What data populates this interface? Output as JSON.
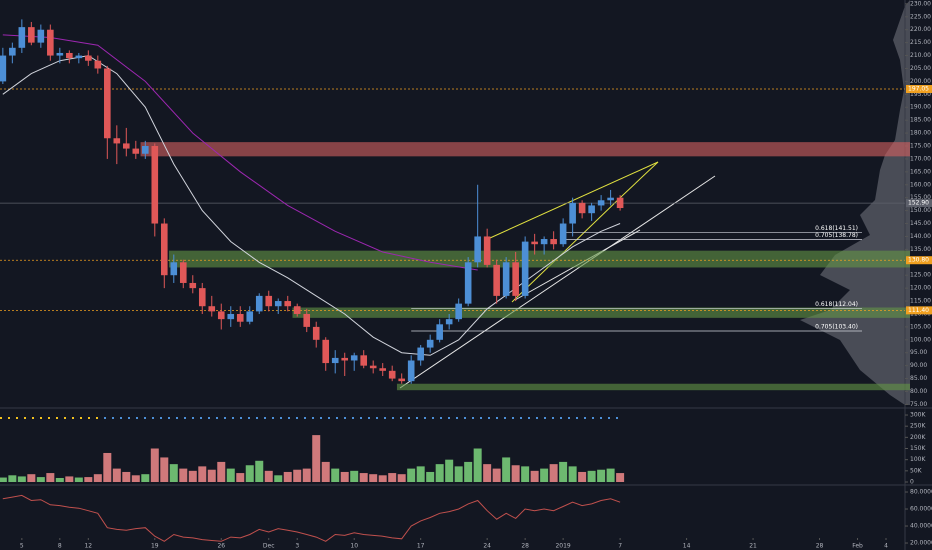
{
  "chart_data": [
    {
      "type": "candlestick",
      "up_color": "#4d8fd6",
      "down_color": "#e05858",
      "xlim": [
        -0.3,
        95
      ],
      "ylim": [
        74,
        231.5
      ],
      "open": [
        200,
        210,
        213,
        221,
        215,
        220,
        210,
        211,
        209,
        210,
        208,
        205,
        178,
        176,
        174,
        172,
        175,
        145,
        125,
        130,
        122,
        120,
        113,
        111,
        108,
        110,
        107,
        111,
        117,
        113,
        115,
        113,
        110,
        105,
        100,
        91,
        93,
        92,
        94,
        90,
        89,
        88,
        85,
        84,
        92,
        97,
        100,
        106,
        108,
        114,
        130,
        140,
        129,
        117,
        130,
        117,
        138,
        137,
        139,
        137,
        145,
        153,
        149,
        152,
        154,
        155
      ],
      "high": [
        213,
        215,
        224,
        223,
        222,
        222,
        213,
        212,
        211,
        212,
        210,
        206,
        183,
        182,
        177,
        177,
        176,
        147,
        133,
        131,
        125,
        122,
        117,
        114,
        113,
        113,
        113,
        118,
        119,
        116,
        117,
        114,
        112,
        107,
        101,
        96,
        95,
        95,
        96,
        92,
        91,
        90,
        87,
        94,
        98,
        102,
        108,
        110,
        116,
        132,
        160,
        143,
        131,
        132,
        134,
        140,
        141,
        140,
        142,
        147,
        155,
        154,
        153,
        156,
        158,
        156
      ],
      "low": [
        199,
        207,
        211,
        214,
        213,
        208,
        207,
        207,
        207,
        206,
        203,
        170,
        168,
        171,
        170,
        170,
        140,
        120,
        122,
        120,
        118,
        110,
        109,
        104,
        105,
        105,
        106,
        110,
        111,
        110,
        111,
        109,
        103,
        97,
        88,
        87,
        86,
        88,
        89,
        87,
        86,
        84,
        83,
        83,
        90,
        95,
        99,
        104,
        107,
        113,
        128,
        128,
        114,
        116,
        115,
        116,
        133,
        133,
        135,
        136,
        140,
        147,
        146,
        150,
        152,
        150
      ],
      "close": [
        210,
        213,
        221,
        215,
        220,
        210,
        211,
        209,
        210,
        208,
        205,
        178,
        176,
        174,
        172,
        175,
        145,
        125,
        130,
        122,
        120,
        113,
        111,
        108,
        110,
        107,
        111,
        117,
        113,
        115,
        113,
        110,
        105,
        100,
        91,
        93,
        92,
        94,
        90,
        89,
        88,
        85,
        84,
        92,
        97,
        100,
        106,
        108,
        114,
        130,
        140,
        129,
        117,
        130,
        117,
        138,
        137,
        139,
        137,
        145,
        153,
        149,
        152,
        154,
        155,
        151
      ],
      "lines": [
        {
          "color": "#d1d4dc",
          "x": [
            0,
            3,
            6,
            9,
            12,
            15,
            18,
            21,
            24,
            27,
            30,
            33,
            36,
            39,
            42,
            45,
            48,
            51,
            54,
            57,
            60,
            63,
            65
          ],
          "values": [
            195,
            203,
            208,
            210,
            203,
            190,
            168,
            150,
            138,
            130,
            124,
            117,
            110,
            101,
            95,
            94,
            100,
            112,
            120,
            128,
            136,
            142,
            145
          ]
        },
        {
          "color": "#9c27b0",
          "x": [
            0,
            5,
            10,
            15,
            20,
            25,
            30,
            35,
            40,
            45,
            50
          ],
          "values": [
            218,
            217,
            214,
            200,
            180,
            165,
            152,
            142,
            134,
            130,
            127
          ]
        }
      ],
      "zones": [
        {
          "low": 171,
          "high": 176.5,
          "start": 14.5,
          "color": "rgba(214,96,96,0.6)"
        },
        {
          "low": 128,
          "high": 134.5,
          "start": 17.5,
          "color": "rgba(100,150,70,0.6)"
        },
        {
          "low": 108.5,
          "high": 112.5,
          "start": 30.5,
          "color": "rgba(100,150,70,0.6)"
        },
        {
          "low": 80.5,
          "high": 83,
          "start": 41.5,
          "color": "rgba(100,150,70,0.6)"
        }
      ],
      "fib_levels": [
        {
          "value": 141.51,
          "label": "0.618(141.51)",
          "start": 59
        },
        {
          "value": 138.78,
          "label": "0.705(138.78)",
          "start": 59
        },
        {
          "value": 112.04,
          "label": "0.618(112.04)",
          "start": 43
        },
        {
          "value": 103.4,
          "label": "0.705(103.40)",
          "start": 43
        }
      ],
      "price_labels": [
        {
          "value": 197.05,
          "label": "197.05",
          "color": "#f0a020"
        },
        {
          "value": 152.9,
          "label": "152.90",
          "color": "#5d606b"
        },
        {
          "value": 130.8,
          "label": "130.80",
          "color": "#f0a020"
        },
        {
          "value": 111.4,
          "label": "111.40",
          "color": "#f0a020"
        }
      ],
      "yticks": [
        {
          "value": 230,
          "label": "230.00"
        },
        {
          "value": 225,
          "label": "225.00"
        },
        {
          "value": 220,
          "label": "220.00"
        },
        {
          "value": 215,
          "label": "215.00"
        },
        {
          "value": 210,
          "label": "210.00"
        },
        {
          "value": 205,
          "label": "205.00"
        },
        {
          "value": 200,
          "label": "200.00"
        },
        {
          "value": 195,
          "label": "195.00"
        },
        {
          "value": 190,
          "label": "190.00"
        },
        {
          "value": 185,
          "label": "185.00"
        },
        {
          "value": 180,
          "label": "180.00"
        },
        {
          "value": 175,
          "label": "175.00"
        },
        {
          "value": 170,
          "label": "170.00"
        },
        {
          "value": 165,
          "label": "165.00"
        },
        {
          "value": 160,
          "label": "160.00"
        },
        {
          "value": 155,
          "label": "155.00"
        },
        {
          "value": 150,
          "label": "150.00"
        },
        {
          "value": 145,
          "label": "145.00"
        },
        {
          "value": 140,
          "label": "140.00"
        },
        {
          "value": 135,
          "label": "135.00"
        },
        {
          "value": 130,
          "label": "130.00"
        },
        {
          "value": 125,
          "label": "125.00"
        },
        {
          "value": 120,
          "label": "120.00"
        },
        {
          "value": 115,
          "label": "115.00"
        },
        {
          "value": 110,
          "label": "110.00"
        },
        {
          "value": 105,
          "label": "105.00"
        },
        {
          "value": 100,
          "label": "100.00"
        },
        {
          "value": 95,
          "label": "95.00"
        },
        {
          "value": 90,
          "label": "90.00"
        },
        {
          "value": 85,
          "label": "85.00"
        },
        {
          "value": 80,
          "label": "80.00"
        },
        {
          "value": 75,
          "label": "75.00"
        }
      ],
      "xticks": [
        {
          "value": 2,
          "label": "5"
        },
        {
          "value": 6,
          "label": "8"
        },
        {
          "value": 9,
          "label": "12"
        },
        {
          "value": 16,
          "label": "19"
        },
        {
          "value": 23,
          "label": "26"
        },
        {
          "value": 28,
          "label": "Dec"
        },
        {
          "value": 31,
          "label": "3"
        },
        {
          "value": 37,
          "label": "10"
        },
        {
          "value": 44,
          "label": "17"
        },
        {
          "value": 51,
          "label": "24"
        },
        {
          "value": 55,
          "label": "28"
        },
        {
          "value": 59,
          "label": "2019"
        },
        {
          "value": 65,
          "label": "7"
        },
        {
          "value": 72,
          "label": "14"
        },
        {
          "value": 79,
          "label": "21"
        },
        {
          "value": 86,
          "label": "28"
        },
        {
          "value": 90,
          "label": "Feb"
        },
        {
          "value": 93,
          "label": "4"
        }
      ]
    },
    {
      "type": "bar",
      "up_color": "#7ed67e",
      "down_color": "#f28b8b",
      "xlim": [
        -0.3,
        95
      ],
      "ylim": [
        0,
        318000
      ],
      "values": [
        20000,
        30000,
        25000,
        35000,
        22000,
        40000,
        18000,
        25000,
        20000,
        22000,
        35000,
        130000,
        60000,
        45000,
        30000,
        35000,
        150000,
        110000,
        80000,
        60000,
        50000,
        70000,
        55000,
        90000,
        60000,
        40000,
        75000,
        95000,
        50000,
        30000,
        45000,
        55000,
        60000,
        210000,
        90000,
        60000,
        45000,
        50000,
        40000,
        35000,
        30000,
        40000,
        35000,
        60000,
        70000,
        45000,
        80000,
        100000,
        70000,
        90000,
        150000,
        80000,
        60000,
        110000,
        75000,
        70000,
        50000,
        60000,
        80000,
        90000,
        70000,
        45000,
        50000,
        55000,
        60000,
        40000
      ],
      "yticks": [
        {
          "value": 300000,
          "label": "300K"
        },
        {
          "value": 250000,
          "label": "250K"
        },
        {
          "value": 200000,
          "label": "200K"
        },
        {
          "value": 150000,
          "label": "150K"
        },
        {
          "value": 100000,
          "label": "100K"
        },
        {
          "value": 50000,
          "label": "50K"
        },
        0
      ]
    },
    {
      "type": "line",
      "color": "#c0504d",
      "xlim": [
        -0.3,
        95
      ],
      "ylim": [
        11.8,
        85.9
      ],
      "values": [
        72,
        74,
        76,
        70,
        71,
        65,
        64,
        62,
        61,
        58,
        55,
        38,
        36,
        35,
        37,
        38,
        28,
        22,
        30,
        27,
        26,
        24,
        23,
        22,
        27,
        26,
        30,
        36,
        33,
        37,
        35,
        33,
        30,
        27,
        22,
        30,
        29,
        32,
        30,
        29,
        28,
        26,
        25,
        40,
        46,
        50,
        55,
        57,
        60,
        66,
        70,
        58,
        48,
        55,
        49,
        60,
        58,
        60,
        58,
        63,
        68,
        64,
        66,
        70,
        72,
        68
      ],
      "yticks": [
        {
          "value": 80,
          "label": "80.0000"
        },
        {
          "value": 60,
          "label": "60.0000"
        },
        {
          "value": 40,
          "label": "40.0000"
        },
        {
          "value": 20,
          "label": "20.0000"
        }
      ]
    }
  ]
}
